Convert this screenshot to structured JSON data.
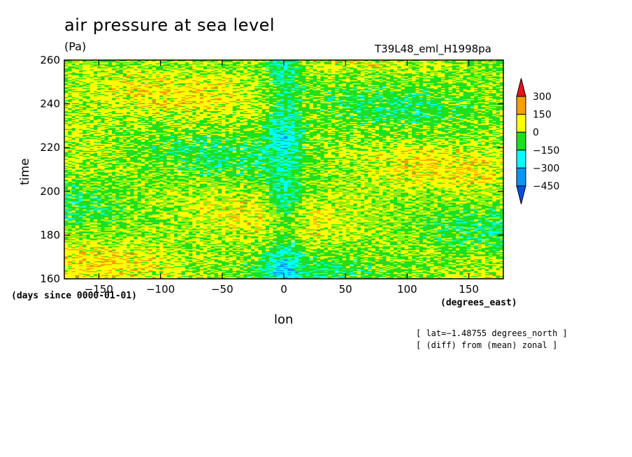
{
  "chart_data": {
    "type": "heatmap",
    "title": "air pressure at sea level",
    "units": "(Pa)",
    "run_label": "T39L48_eml_H1998pa",
    "xlabel": "lon",
    "x_units": "(degrees_east)",
    "ylabel": "time",
    "y_units": "(days since 0000-01-01)",
    "xlim": [
      -178,
      178
    ],
    "ylim": [
      160,
      260
    ],
    "x_ticks": [
      -150,
      -100,
      -50,
      0,
      50,
      100,
      150
    ],
    "y_ticks": [
      160,
      180,
      200,
      220,
      240,
      260
    ],
    "colorbar": {
      "levels": [
        "300",
        "150",
        "0",
        "−150",
        "−300",
        "−450"
      ],
      "colors": [
        "#e8141c",
        "#f5a000",
        "#ffff00",
        "#1ee01e",
        "#00ffff",
        "#0a96f5",
        "#0050e0"
      ]
    },
    "notes": [
      "[ lat=−1.48755 degrees_north ]",
      "[ (diff) from (mean) zonal ]"
    ]
  }
}
